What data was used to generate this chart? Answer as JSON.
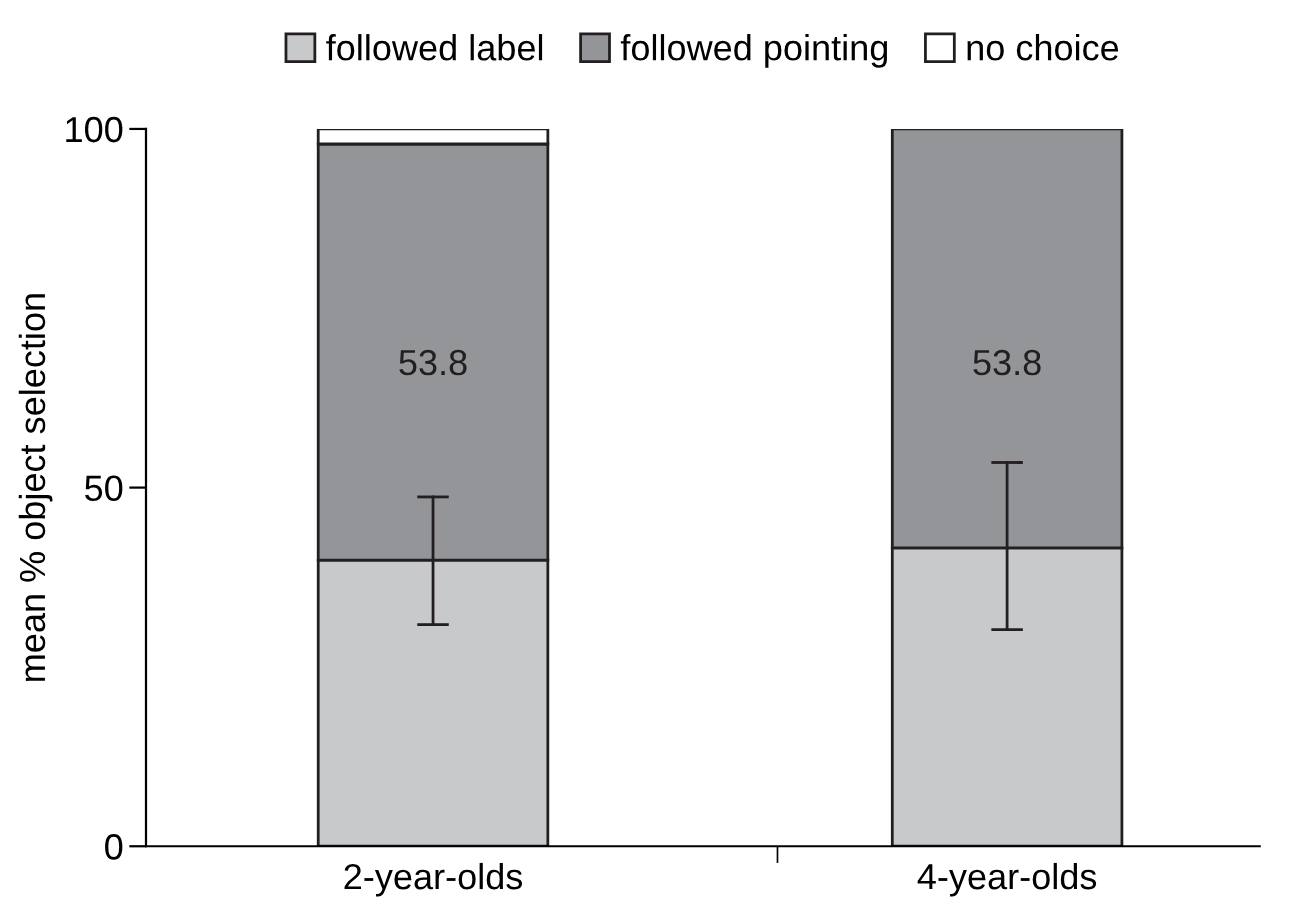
{
  "chart_data": {
    "type": "bar",
    "stacked": true,
    "ylabel": "mean % object selection",
    "categories": [
      "2-year-olds",
      "4-year-olds"
    ],
    "series": [
      {
        "name": "followed label",
        "color": "#c8c9cb",
        "values": [
          39.9,
          41.6
        ],
        "errors": [
          [
            30.9,
            48.7
          ],
          [
            30.2,
            53.5
          ]
        ]
      },
      {
        "name": "followed pointing",
        "color": "#939598",
        "values": [
          58.0,
          58.4
        ]
      },
      {
        "name": "no choice",
        "color": "#ffffff",
        "values": [
          2.1,
          0
        ]
      }
    ],
    "annotations": [
      "53.8",
      "53.8"
    ],
    "ylim": [
      0,
      100
    ],
    "yticks": [
      0,
      50,
      100
    ],
    "grid": false,
    "legend": "top"
  }
}
